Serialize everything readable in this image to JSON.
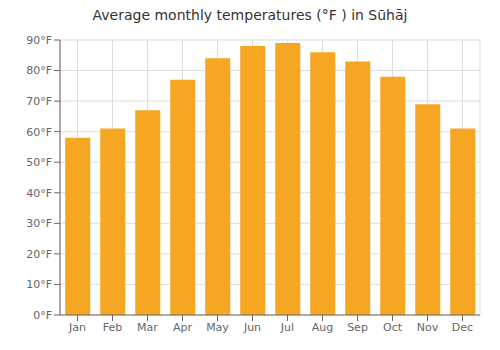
{
  "chart_data": {
    "type": "bar",
    "title": "Average monthly temperatures (°F ) in Sūhāj",
    "categories": [
      "Jan",
      "Feb",
      "Mar",
      "Apr",
      "May",
      "Jun",
      "Jul",
      "Aug",
      "Sep",
      "Oct",
      "Nov",
      "Dec"
    ],
    "values": [
      58,
      61,
      67,
      77,
      84,
      88,
      89,
      86,
      83,
      78,
      69,
      61
    ],
    "color": "#F5A623",
    "ylim": [
      0,
      90
    ],
    "yticks": [
      {
        "value": 0,
        "label": "0°F"
      },
      {
        "value": 10,
        "label": "10°F"
      },
      {
        "value": 20,
        "label": "20°F"
      },
      {
        "value": 30,
        "label": "30°F"
      },
      {
        "value": 40,
        "label": "40°F"
      },
      {
        "value": 50,
        "label": "50°F"
      },
      {
        "value": 60,
        "label": "60°F"
      },
      {
        "value": 70,
        "label": "70°F"
      },
      {
        "value": 80,
        "label": "80°F"
      },
      {
        "value": 90,
        "label": "90°F"
      }
    ],
    "grid": true
  }
}
